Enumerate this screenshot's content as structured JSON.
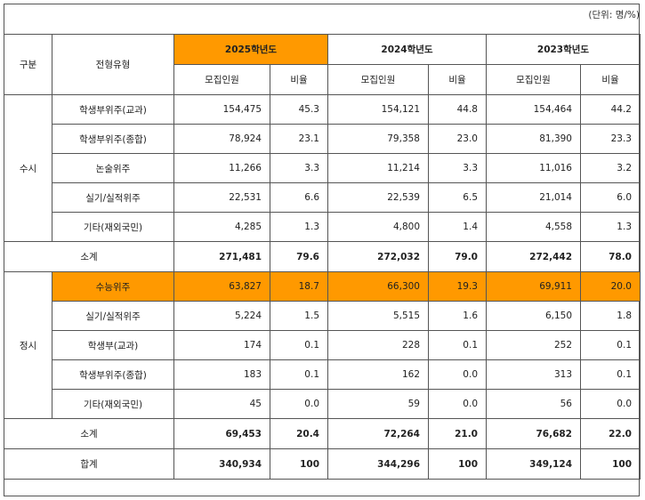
{
  "unit_label": "(단위: 명/%)",
  "header": {
    "category": "구분",
    "type": "전형유형",
    "years": [
      "2025학년도",
      "2024학년도",
      "2023학년도"
    ],
    "count_label": "모집인원",
    "ratio_label": "비율"
  },
  "susi": {
    "label": "수시",
    "rows": [
      {
        "type": "학생부위주(교과)",
        "v": [
          "154,475",
          "45.3",
          "154,121",
          "44.8",
          "154,464",
          "44.2"
        ]
      },
      {
        "type": "학생부위주(종합)",
        "v": [
          "78,924",
          "23.1",
          "79,358",
          "23.0",
          "81,390",
          "23.3"
        ]
      },
      {
        "type": "논술위주",
        "v": [
          "11,266",
          "3.3",
          "11,214",
          "3.3",
          "11,016",
          "3.2"
        ]
      },
      {
        "type": "실기/실적위주",
        "v": [
          "22,531",
          "6.6",
          "22,539",
          "6.5",
          "21,014",
          "6.0"
        ]
      },
      {
        "type": "기타(재외국민)",
        "v": [
          "4,285",
          "1.3",
          "4,800",
          "1.4",
          "4,558",
          "1.3"
        ]
      }
    ],
    "subtotal": {
      "label": "소계",
      "v": [
        "271,481",
        "79.6",
        "272,032",
        "79.0",
        "272,442",
        "78.0"
      ]
    }
  },
  "jungsi": {
    "label": "정시",
    "rows": [
      {
        "type": "수능위주",
        "v": [
          "63,827",
          "18.7",
          "66,300",
          "19.3",
          "69,911",
          "20.0"
        ]
      },
      {
        "type": "실기/실적위주",
        "v": [
          "5,224",
          "1.5",
          "5,515",
          "1.6",
          "6,150",
          "1.8"
        ]
      },
      {
        "type": "학생부(교과)",
        "v": [
          "174",
          "0.1",
          "228",
          "0.1",
          "252",
          "0.1"
        ]
      },
      {
        "type": "학생부위주(종합)",
        "v": [
          "183",
          "0.1",
          "162",
          "0.0",
          "313",
          "0.1"
        ]
      },
      {
        "type": "기타(재외국민)",
        "v": [
          "45",
          "0.0",
          "59",
          "0.0",
          "56",
          "0.0"
        ]
      }
    ],
    "subtotal": {
      "label": "소계",
      "v": [
        "69,453",
        "20.4",
        "72,264",
        "21.0",
        "76,682",
        "22.0"
      ]
    }
  },
  "total": {
    "label": "합계",
    "v": [
      "340,934",
      "100",
      "344,296",
      "100",
      "349,124",
      "100"
    ]
  },
  "colors": {
    "highlight": "#ff9900",
    "border": "#555555"
  }
}
